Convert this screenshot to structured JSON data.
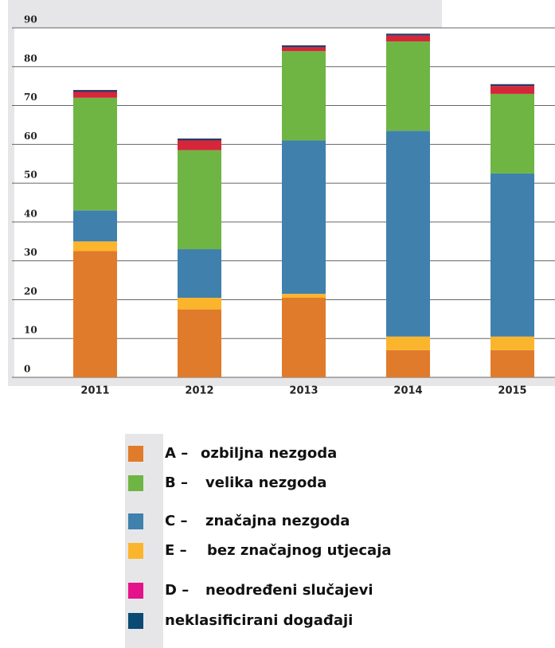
{
  "chart_data": {
    "type": "stacked_bar",
    "categories": [
      "2011",
      "2012",
      "2013",
      "2014",
      "2015"
    ],
    "series": [
      {
        "code": "A –",
        "name": "ozbiljna nezgoda",
        "color": "#e07b2c",
        "values": [
          32.5,
          17.5,
          20.5,
          7,
          7
        ]
      },
      {
        "code": "E –",
        "name": "bez značajnog utjecaja",
        "color": "#fbb52c",
        "values": [
          2.5,
          3,
          1,
          3.5,
          3.5
        ]
      },
      {
        "code": "C –",
        "name": "značajna nezgoda",
        "color": "#3f80ad",
        "values": [
          8,
          12.5,
          39.5,
          53,
          42
        ]
      },
      {
        "code": "B –",
        "name": "velika nezgoda",
        "color": "#6fb544",
        "values": [
          29,
          25.5,
          23,
          23,
          20.5
        ]
      },
      {
        "code": "D –",
        "name": "neodređeni slučajevi",
        "color": "#d6263a",
        "legend_color": "#e5128a",
        "values": [
          1.5,
          2.5,
          1,
          1.5,
          2
        ]
      },
      {
        "name": "neklasificirani događaji",
        "color": "#2b3a63",
        "legend_color": "#0b4a73",
        "values": [
          0.5,
          0.5,
          0.5,
          0.5,
          0.5
        ]
      }
    ],
    "legend_order": [
      0,
      3,
      2,
      1,
      4,
      5
    ],
    "ylim": [
      0,
      90
    ],
    "yticks": [
      0,
      10,
      20,
      30,
      40,
      50,
      60,
      70,
      80,
      90
    ],
    "grid": true
  }
}
